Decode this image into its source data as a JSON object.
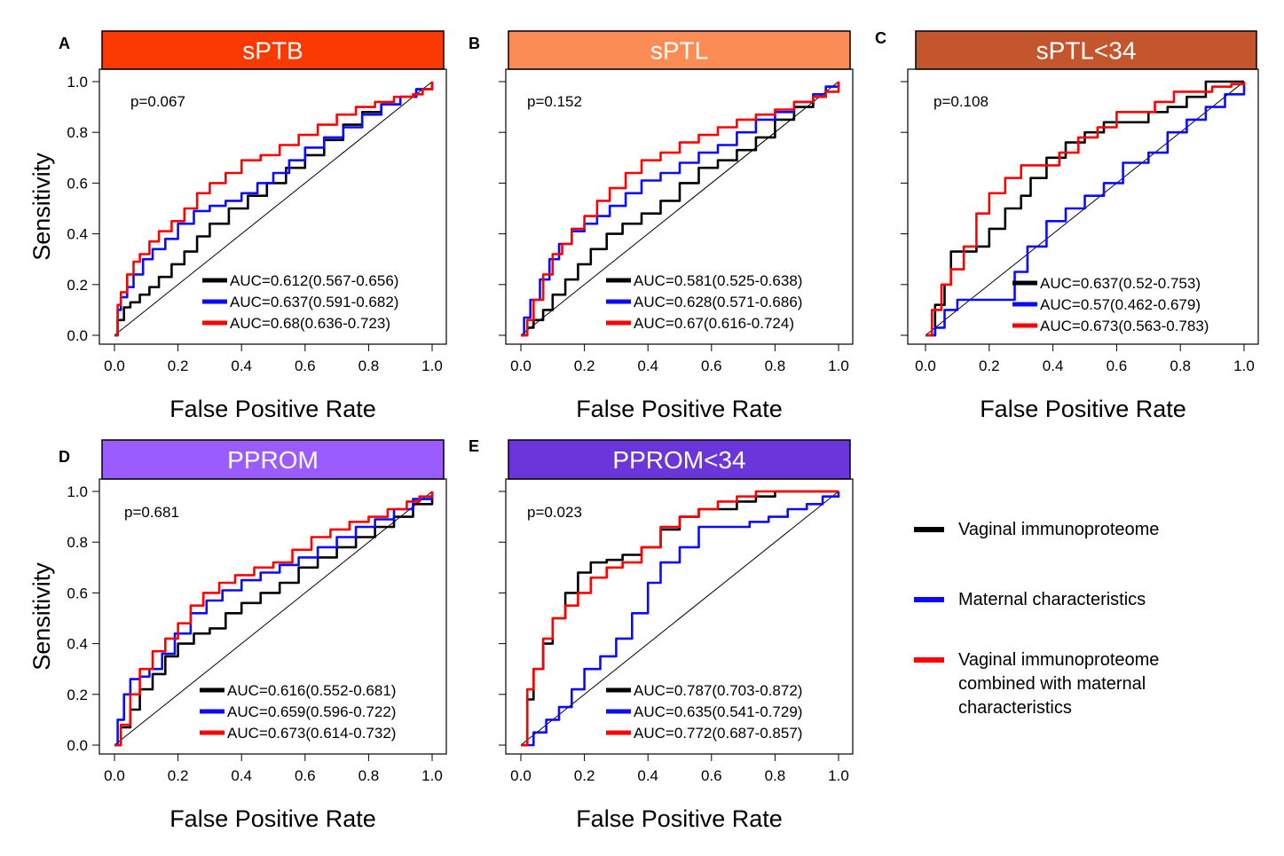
{
  "chart_data": [
    {
      "type": "line",
      "panel_letter": "A",
      "title": "sPTB",
      "title_color": "#fb3a03",
      "title_text_color": "#ffffff",
      "xlabel": "False Positive Rate",
      "ylabel": "Sensitivity",
      "xlim": [
        0,
        1
      ],
      "ylim": [
        0,
        1
      ],
      "x_ticks": [
        "0.0",
        "0.2",
        "0.4",
        "0.6",
        "0.8",
        "1.0"
      ],
      "y_ticks": [
        "0.0",
        "0.2",
        "0.4",
        "0.6",
        "0.8",
        "1.0"
      ],
      "pvalue": "p=0.067",
      "series": [
        {
          "color": "#000000",
          "auc": "AUC=0.612(0.567-0.656)",
          "x": [
            0,
            0.01,
            0.03,
            0.05,
            0.08,
            0.11,
            0.14,
            0.18,
            0.22,
            0.26,
            0.3,
            0.36,
            0.42,
            0.48,
            0.54,
            0.6,
            0.66,
            0.72,
            0.78,
            0.84,
            0.9,
            0.95,
            1.0
          ],
          "y": [
            0,
            0.06,
            0.11,
            0.13,
            0.16,
            0.19,
            0.23,
            0.28,
            0.33,
            0.39,
            0.44,
            0.5,
            0.55,
            0.6,
            0.66,
            0.71,
            0.77,
            0.83,
            0.88,
            0.91,
            0.94,
            0.97,
            1.0
          ]
        },
        {
          "color": "#0a0aff",
          "auc": "AUC=0.637(0.591-0.682)",
          "x": [
            0,
            0.01,
            0.02,
            0.04,
            0.06,
            0.09,
            0.12,
            0.16,
            0.2,
            0.25,
            0.3,
            0.35,
            0.4,
            0.45,
            0.5,
            0.55,
            0.6,
            0.66,
            0.72,
            0.78,
            0.84,
            0.9,
            0.95,
            1.0
          ],
          "y": [
            0,
            0.1,
            0.15,
            0.19,
            0.24,
            0.3,
            0.34,
            0.38,
            0.44,
            0.49,
            0.51,
            0.53,
            0.56,
            0.6,
            0.64,
            0.69,
            0.74,
            0.78,
            0.82,
            0.87,
            0.91,
            0.94,
            0.97,
            1.0
          ]
        },
        {
          "color": "#ff0000",
          "auc": "AUC=0.68(0.636-0.723)",
          "x": [
            0,
            0.01,
            0.02,
            0.04,
            0.06,
            0.08,
            0.11,
            0.14,
            0.18,
            0.22,
            0.26,
            0.3,
            0.35,
            0.4,
            0.46,
            0.52,
            0.58,
            0.64,
            0.7,
            0.76,
            0.82,
            0.88,
            0.94,
            0.97,
            1.0
          ],
          "y": [
            0,
            0.12,
            0.17,
            0.24,
            0.29,
            0.32,
            0.37,
            0.41,
            0.45,
            0.5,
            0.56,
            0.6,
            0.64,
            0.69,
            0.71,
            0.75,
            0.79,
            0.83,
            0.87,
            0.9,
            0.92,
            0.94,
            0.95,
            0.97,
            1.0
          ]
        }
      ]
    },
    {
      "type": "line",
      "panel_letter": "B",
      "title": "sPTL",
      "title_color": "#fb8c56",
      "title_text_color": "#ffffff",
      "xlabel": "False Positive Rate",
      "ylabel": "",
      "xlim": [
        0,
        1
      ],
      "ylim": [
        0,
        1
      ],
      "x_ticks": [
        "0.0",
        "0.2",
        "0.4",
        "0.6",
        "0.8",
        "1.0"
      ],
      "y_ticks": [],
      "pvalue": "p=0.152",
      "series": [
        {
          "color": "#000000",
          "auc": "AUC=0.581(0.525-0.638)",
          "x": [
            0,
            0.02,
            0.04,
            0.07,
            0.1,
            0.14,
            0.18,
            0.22,
            0.27,
            0.32,
            0.38,
            0.44,
            0.5,
            0.56,
            0.62,
            0.68,
            0.74,
            0.8,
            0.86,
            0.92,
            0.96,
            1.0
          ],
          "y": [
            0,
            0.03,
            0.06,
            0.1,
            0.16,
            0.22,
            0.28,
            0.34,
            0.4,
            0.44,
            0.48,
            0.53,
            0.6,
            0.66,
            0.69,
            0.73,
            0.78,
            0.85,
            0.9,
            0.94,
            0.98,
            1.0
          ]
        },
        {
          "color": "#0a0aff",
          "auc": "AUC=0.628(0.571-0.686)",
          "x": [
            0,
            0.01,
            0.03,
            0.06,
            0.09,
            0.12,
            0.16,
            0.2,
            0.24,
            0.28,
            0.33,
            0.38,
            0.44,
            0.5,
            0.56,
            0.62,
            0.68,
            0.74,
            0.8,
            0.86,
            0.92,
            0.96,
            1.0
          ],
          "y": [
            0,
            0.07,
            0.14,
            0.22,
            0.3,
            0.36,
            0.41,
            0.44,
            0.47,
            0.51,
            0.56,
            0.61,
            0.64,
            0.68,
            0.72,
            0.75,
            0.8,
            0.85,
            0.88,
            0.92,
            0.95,
            0.98,
            1.0
          ]
        },
        {
          "color": "#ff0000",
          "auc": "AUC=0.67(0.616-0.724)",
          "x": [
            0,
            0.02,
            0.04,
            0.07,
            0.1,
            0.13,
            0.16,
            0.2,
            0.24,
            0.28,
            0.33,
            0.38,
            0.44,
            0.5,
            0.56,
            0.62,
            0.68,
            0.74,
            0.8,
            0.86,
            0.92,
            0.96,
            1.0
          ],
          "y": [
            0,
            0.06,
            0.14,
            0.24,
            0.32,
            0.36,
            0.42,
            0.47,
            0.53,
            0.58,
            0.64,
            0.69,
            0.72,
            0.76,
            0.79,
            0.82,
            0.85,
            0.87,
            0.89,
            0.92,
            0.94,
            0.96,
            1.0
          ]
        }
      ]
    },
    {
      "type": "line",
      "panel_letter": "C",
      "title": "sPTL<34",
      "title_color": "#c4562e",
      "title_text_color": "#ffffff",
      "xlabel": "False Positive Rate",
      "ylabel": "",
      "xlim": [
        0,
        1
      ],
      "ylim": [
        0,
        1
      ],
      "x_ticks": [
        "0.0",
        "0.2",
        "0.4",
        "0.6",
        "0.8",
        "1.0"
      ],
      "y_ticks": [],
      "pvalue": "p=0.108",
      "series": [
        {
          "color": "#000000",
          "auc": "AUC=0.637(0.52-0.753)",
          "x": [
            0,
            0.03,
            0.06,
            0.08,
            0.1,
            0.16,
            0.2,
            0.25,
            0.3,
            0.33,
            0.38,
            0.44,
            0.5,
            0.56,
            0.62,
            0.7,
            0.76,
            0.82,
            0.88,
            0.94,
            1.0
          ],
          "y": [
            0,
            0.12,
            0.2,
            0.33,
            0.33,
            0.35,
            0.42,
            0.5,
            0.55,
            0.62,
            0.7,
            0.76,
            0.8,
            0.84,
            0.84,
            0.88,
            0.9,
            0.94,
            1.0,
            1.0,
            1.0
          ]
        },
        {
          "color": "#0a0aff",
          "auc": "AUC=0.57(0.462-0.679)",
          "x": [
            0,
            0.03,
            0.06,
            0.1,
            0.16,
            0.22,
            0.28,
            0.32,
            0.38,
            0.44,
            0.5,
            0.56,
            0.62,
            0.7,
            0.76,
            0.82,
            0.88,
            0.94,
            1.0
          ],
          "y": [
            0,
            0.03,
            0.1,
            0.14,
            0.14,
            0.14,
            0.25,
            0.35,
            0.45,
            0.5,
            0.55,
            0.6,
            0.68,
            0.72,
            0.8,
            0.85,
            0.9,
            0.95,
            1.0
          ]
        },
        {
          "color": "#ff0000",
          "auc": "AUC=0.673(0.563-0.783)",
          "x": [
            0,
            0.02,
            0.05,
            0.08,
            0.12,
            0.16,
            0.2,
            0.25,
            0.3,
            0.36,
            0.42,
            0.48,
            0.54,
            0.6,
            0.66,
            0.72,
            0.78,
            0.84,
            0.9,
            0.96,
            1.0
          ],
          "y": [
            0,
            0.1,
            0.2,
            0.26,
            0.35,
            0.48,
            0.56,
            0.62,
            0.67,
            0.67,
            0.72,
            0.78,
            0.82,
            0.88,
            0.88,
            0.92,
            0.96,
            0.96,
            0.98,
            0.99,
            1.0
          ]
        }
      ]
    },
    {
      "type": "line",
      "panel_letter": "D",
      "title": "PPROM",
      "title_color": "#9b5cff",
      "title_text_color": "#ffffff",
      "xlabel": "False Positive Rate",
      "ylabel": "Sensitivity",
      "xlim": [
        0,
        1
      ],
      "ylim": [
        0,
        1
      ],
      "x_ticks": [
        "0.0",
        "0.2",
        "0.4",
        "0.6",
        "0.8",
        "1.0"
      ],
      "y_ticks": [
        "0.0",
        "0.2",
        "0.4",
        "0.6",
        "0.8",
        "1.0"
      ],
      "pvalue": "p=0.681",
      "series": [
        {
          "color": "#000000",
          "auc": "AUC=0.616(0.552-0.681)",
          "x": [
            0,
            0.02,
            0.05,
            0.08,
            0.12,
            0.16,
            0.2,
            0.25,
            0.3,
            0.35,
            0.4,
            0.46,
            0.52,
            0.58,
            0.64,
            0.7,
            0.76,
            0.82,
            0.88,
            0.94,
            1.0
          ],
          "y": [
            0,
            0.07,
            0.14,
            0.22,
            0.28,
            0.35,
            0.4,
            0.44,
            0.46,
            0.52,
            0.56,
            0.6,
            0.64,
            0.7,
            0.74,
            0.78,
            0.82,
            0.86,
            0.9,
            0.95,
            1.0
          ]
        },
        {
          "color": "#0a0aff",
          "auc": "AUC=0.659(0.596-0.722)",
          "x": [
            0,
            0.01,
            0.03,
            0.05,
            0.08,
            0.11,
            0.15,
            0.19,
            0.24,
            0.29,
            0.34,
            0.4,
            0.46,
            0.52,
            0.58,
            0.64,
            0.7,
            0.76,
            0.82,
            0.88,
            0.94,
            1.0
          ],
          "y": [
            0,
            0.1,
            0.2,
            0.26,
            0.27,
            0.3,
            0.36,
            0.44,
            0.52,
            0.57,
            0.61,
            0.65,
            0.68,
            0.71,
            0.74,
            0.78,
            0.82,
            0.86,
            0.89,
            0.93,
            0.97,
            1.0
          ]
        },
        {
          "color": "#ff0000",
          "auc": "AUC=0.673(0.614-0.732)",
          "x": [
            0,
            0.02,
            0.05,
            0.08,
            0.12,
            0.16,
            0.2,
            0.24,
            0.28,
            0.33,
            0.38,
            0.44,
            0.5,
            0.56,
            0.62,
            0.68,
            0.74,
            0.8,
            0.86,
            0.92,
            0.96,
            1.0
          ],
          "y": [
            0,
            0.08,
            0.2,
            0.3,
            0.37,
            0.42,
            0.48,
            0.55,
            0.6,
            0.64,
            0.67,
            0.7,
            0.72,
            0.77,
            0.82,
            0.85,
            0.88,
            0.9,
            0.93,
            0.96,
            0.98,
            1.0
          ]
        }
      ]
    },
    {
      "type": "line",
      "panel_letter": "E",
      "title": "PPROM<34",
      "title_color": "#6a35d9",
      "title_text_color": "#ffffff",
      "xlabel": "False Positive Rate",
      "ylabel": "",
      "xlim": [
        0,
        1
      ],
      "ylim": [
        0,
        1
      ],
      "x_ticks": [
        "0.0",
        "0.2",
        "0.4",
        "0.6",
        "0.8",
        "1.0"
      ],
      "y_ticks": [],
      "pvalue": "p=0.023",
      "series": [
        {
          "color": "#000000",
          "auc": "AUC=0.787(0.703-0.872)",
          "x": [
            0,
            0.02,
            0.04,
            0.07,
            0.1,
            0.14,
            0.18,
            0.22,
            0.27,
            0.32,
            0.38,
            0.44,
            0.5,
            0.56,
            0.62,
            0.68,
            0.74,
            0.8,
            0.88,
            0.94,
            1.0
          ],
          "y": [
            0,
            0.18,
            0.3,
            0.4,
            0.5,
            0.6,
            0.68,
            0.72,
            0.73,
            0.75,
            0.78,
            0.85,
            0.9,
            0.93,
            0.93,
            0.96,
            0.98,
            1.0,
            1.0,
            1.0,
            1.0
          ]
        },
        {
          "color": "#0a0aff",
          "auc": "AUC=0.635(0.541-0.729)",
          "x": [
            0,
            0.04,
            0.08,
            0.12,
            0.16,
            0.2,
            0.25,
            0.3,
            0.35,
            0.4,
            0.44,
            0.5,
            0.56,
            0.6,
            0.66,
            0.72,
            0.78,
            0.84,
            0.9,
            0.95,
            1.0
          ],
          "y": [
            0,
            0.05,
            0.1,
            0.15,
            0.22,
            0.3,
            0.35,
            0.42,
            0.52,
            0.64,
            0.72,
            0.78,
            0.86,
            0.86,
            0.86,
            0.88,
            0.9,
            0.93,
            0.95,
            0.98,
            1.0
          ]
        },
        {
          "color": "#ff0000",
          "auc": "AUC=0.772(0.687-0.857)",
          "x": [
            0,
            0.02,
            0.04,
            0.07,
            0.1,
            0.14,
            0.18,
            0.22,
            0.27,
            0.32,
            0.38,
            0.44,
            0.5,
            0.56,
            0.62,
            0.68,
            0.74,
            0.8,
            0.88,
            0.94,
            1.0
          ],
          "y": [
            0,
            0.22,
            0.3,
            0.42,
            0.5,
            0.55,
            0.6,
            0.66,
            0.7,
            0.72,
            0.78,
            0.86,
            0.9,
            0.93,
            0.96,
            0.98,
            1.0,
            1.0,
            1.0,
            1.0,
            1.0
          ]
        }
      ]
    }
  ],
  "legend": [
    {
      "color": "#000000",
      "label_lines": [
        "Vaginal immunoproteome"
      ]
    },
    {
      "color": "#0a0aff",
      "label_lines": [
        "Maternal characteristics"
      ]
    },
    {
      "color": "#ff0000",
      "label_lines": [
        "Vaginal immunoproteome",
        "combined with maternal",
        "characteristics"
      ]
    }
  ]
}
